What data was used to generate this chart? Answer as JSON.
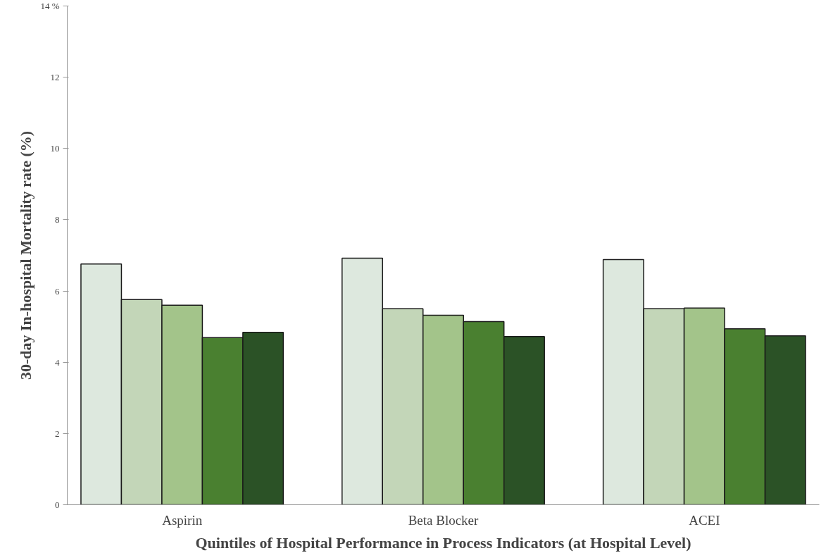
{
  "chart_data": {
    "type": "bar",
    "xlabel": "Quintiles of Hospital Performance in Process Indicators (at Hospital Level)",
    "ylabel": "30-day In-hospital Mortality rate (%)",
    "categories": [
      "Aspirin",
      "Beta Blocker",
      "ACEI"
    ],
    "series": [
      {
        "color": "#dde8de",
        "values": [
          6.76,
          6.92,
          6.88
        ]
      },
      {
        "color": "#c3d6b8",
        "values": [
          5.76,
          5.5,
          5.5
        ]
      },
      {
        "color": "#a3c48a",
        "values": [
          5.6,
          5.32,
          5.52
        ]
      },
      {
        "color": "#4a8030",
        "values": [
          4.69,
          5.14,
          4.94
        ]
      },
      {
        "color": "#2b5226",
        "values": [
          4.84,
          4.72,
          4.74
        ]
      }
    ],
    "ylim": [
      0,
      14
    ],
    "yticks": [
      0,
      2,
      4,
      6,
      8,
      10,
      12,
      {
        "value": 14,
        "label": "14 %"
      }
    ],
    "grid": false
  }
}
